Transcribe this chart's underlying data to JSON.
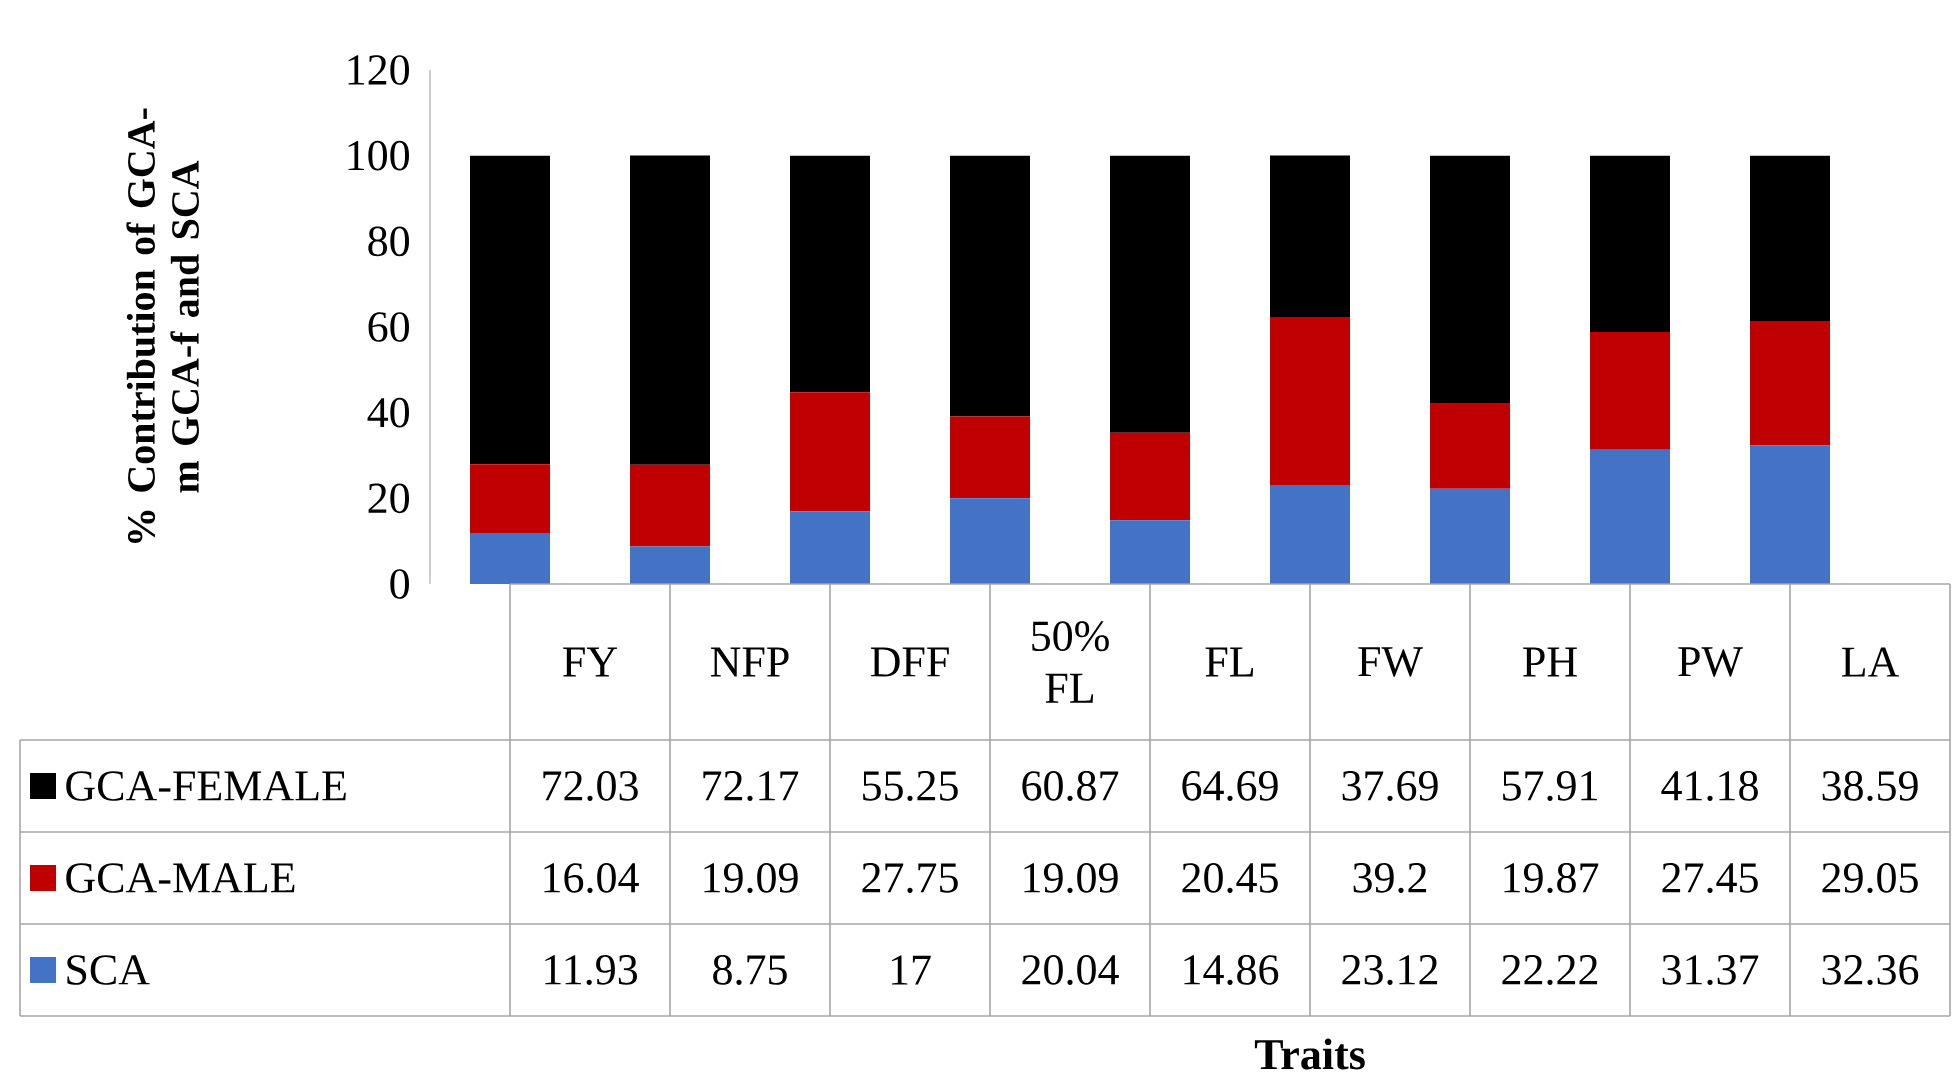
{
  "chart_data": {
    "type": "bar",
    "stacked": true,
    "data_labels": true,
    "legend": "bottom left",
    "annotations": [
      "Traits"
    ],
    "ylabel": "% Contribution of GCA-m GCA-f and SCA",
    "categories": [
      "FY",
      "NFP",
      "DFF",
      "50% FL",
      "FL",
      "FW",
      "PH",
      "PW",
      "LA"
    ],
    "ylim": [
      0,
      120
    ],
    "yticks": [
      0,
      20,
      40,
      60,
      80,
      100,
      120
    ],
    "series": [
      {
        "name": "SCA",
        "color": "#4472c4",
        "values": [
          11.93,
          8.75,
          17,
          20.04,
          14.86,
          23.12,
          22.22,
          31.37,
          32.36
        ]
      },
      {
        "name": "GCA-MALE",
        "color": "#c00000",
        "values": [
          16.04,
          19.09,
          27.75,
          19.09,
          20.45,
          39.2,
          19.87,
          27.45,
          29.05
        ]
      },
      {
        "name": "GCA-FEMALE",
        "color": "#000000",
        "values": [
          72.03,
          72.17,
          55.25,
          60.87,
          64.69,
          37.69,
          57.91,
          41.18,
          38.59
        ]
      }
    ]
  }
}
